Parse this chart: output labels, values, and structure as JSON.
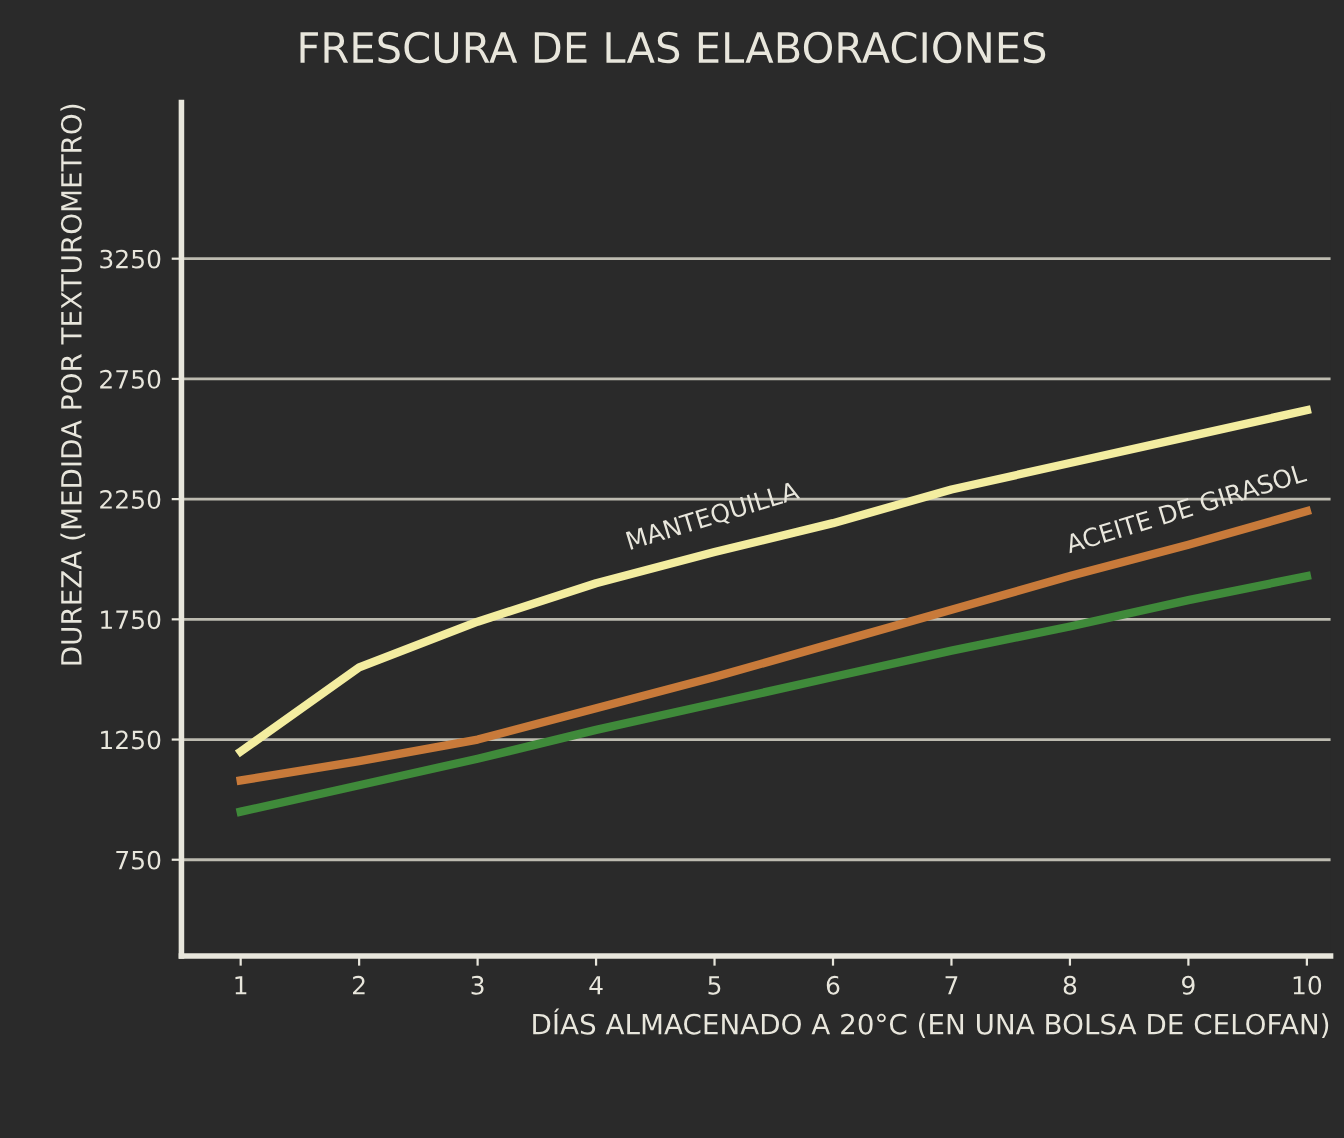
{
  "chart_data": {
    "type": "line",
    "title": "FRESCURA DE LAS ELABORACIONES",
    "xlabel": "DÍAS ALMACENADO A 20°C (EN UNA BOLSA DE CELOFAN)",
    "ylabel": "DUREZA (MEDIDA POR TEXTUROMETRO)",
    "x": [
      1,
      2,
      3,
      4,
      5,
      6,
      7,
      8,
      9,
      10
    ],
    "series": [
      {
        "name": "MANTEQUILLA",
        "color": "#f3eda0",
        "values": [
          1200,
          1550,
          1740,
          1900,
          2030,
          2150,
          2290,
          2400,
          2510,
          2620
        ]
      },
      {
        "name": "ACEITE DE GIRASOL",
        "color": "#c87a3a",
        "values": [
          1080,
          1160,
          1250,
          1380,
          1510,
          1650,
          1790,
          1930,
          2060,
          2200
        ]
      },
      {
        "color": "#3f8a3a",
        "values": [
          950,
          1060,
          1170,
          1290,
          1400,
          1510,
          1620,
          1720,
          1830,
          1930
        ]
      }
    ],
    "xlim": [
      0.5,
      10.2
    ],
    "xticks": [
      1,
      2,
      3,
      4,
      5,
      6,
      7,
      8,
      9,
      10
    ],
    "ylim": [
      350,
      3900
    ],
    "yticks": [
      750,
      1250,
      1750,
      2250,
      2750,
      3250
    ],
    "grid": "y",
    "legend": false
  }
}
